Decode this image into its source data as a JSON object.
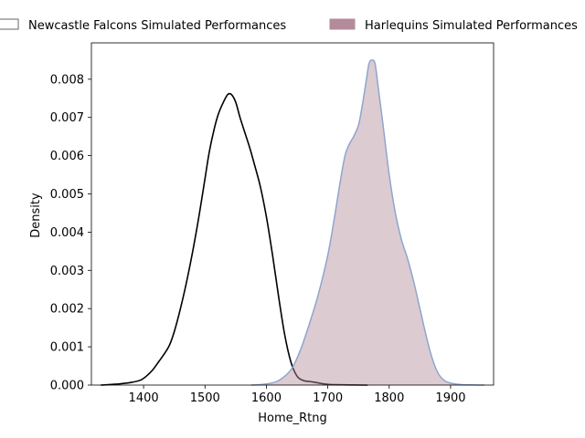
{
  "chart_data": {
    "type": "area",
    "xlabel": "Home_Rtng",
    "ylabel": "Density",
    "xlim": [
      1315,
      1970
    ],
    "ylim": [
      0,
      0.00895
    ],
    "x_ticks": [
      1300,
      1400,
      1500,
      1600,
      1700,
      1800,
      1900
    ],
    "y_ticks": [
      0.0,
      0.001,
      0.002,
      0.003,
      0.004,
      0.005,
      0.006,
      0.007,
      0.008
    ],
    "y_tick_labels": [
      "0.000",
      "0.001",
      "0.002",
      "0.003",
      "0.004",
      "0.005",
      "0.006",
      "0.007",
      "0.008"
    ],
    "grid": false,
    "legend_position": "top",
    "series": [
      {
        "name": "Newcastle Falcons Simulated Performances",
        "style": "line",
        "color": "#000000",
        "points": [
          [
            1330,
            0.0
          ],
          [
            1360,
            3e-05
          ],
          [
            1380,
            7e-05
          ],
          [
            1395,
            0.00013
          ],
          [
            1405,
            0.00024
          ],
          [
            1415,
            0.0004
          ],
          [
            1425,
            0.00062
          ],
          [
            1433,
            0.0008
          ],
          [
            1442,
            0.00104
          ],
          [
            1450,
            0.0014
          ],
          [
            1460,
            0.002
          ],
          [
            1470,
            0.0027
          ],
          [
            1480,
            0.0035
          ],
          [
            1490,
            0.0044
          ],
          [
            1500,
            0.0054
          ],
          [
            1507,
            0.0061
          ],
          [
            1515,
            0.0067
          ],
          [
            1522,
            0.0071
          ],
          [
            1530,
            0.0074
          ],
          [
            1537,
            0.0076
          ],
          [
            1543,
            0.0076
          ],
          [
            1550,
            0.0074
          ],
          [
            1557,
            0.007
          ],
          [
            1565,
            0.0066
          ],
          [
            1573,
            0.0062
          ],
          [
            1580,
            0.0058
          ],
          [
            1590,
            0.0052
          ],
          [
            1600,
            0.0044
          ],
          [
            1610,
            0.0034
          ],
          [
            1620,
            0.0023
          ],
          [
            1630,
            0.0013
          ],
          [
            1640,
            0.0006
          ],
          [
            1650,
            0.00023
          ],
          [
            1660,
            0.00012
          ],
          [
            1672,
            9e-05
          ],
          [
            1680,
            7e-05
          ],
          [
            1690,
            4e-05
          ],
          [
            1700,
            2e-05
          ],
          [
            1712,
            1e-05
          ],
          [
            1765,
            0.0
          ]
        ]
      },
      {
        "name": "Harlequins Simulated Performances",
        "style": "filled",
        "color": "#b48b9b",
        "edge_color": "#8fa5cc",
        "points": [
          [
            1575,
            0.0
          ],
          [
            1600,
            3e-05
          ],
          [
            1620,
            0.00012
          ],
          [
            1640,
            0.0004
          ],
          [
            1655,
            0.0009
          ],
          [
            1670,
            0.0016
          ],
          [
            1685,
            0.0024
          ],
          [
            1700,
            0.0034
          ],
          [
            1710,
            0.0043
          ],
          [
            1720,
            0.0053
          ],
          [
            1728,
            0.006
          ],
          [
            1735,
            0.0063
          ],
          [
            1742,
            0.0065
          ],
          [
            1750,
            0.0068
          ],
          [
            1756,
            0.0073
          ],
          [
            1762,
            0.0079
          ],
          [
            1767,
            0.0084
          ],
          [
            1772,
            0.0085
          ],
          [
            1777,
            0.0084
          ],
          [
            1782,
            0.0078
          ],
          [
            1790,
            0.0068
          ],
          [
            1800,
            0.0055
          ],
          [
            1810,
            0.0045
          ],
          [
            1820,
            0.0038
          ],
          [
            1830,
            0.0033
          ],
          [
            1840,
            0.0027
          ],
          [
            1850,
            0.002
          ],
          [
            1860,
            0.0013
          ],
          [
            1870,
            0.0007
          ],
          [
            1880,
            0.0003
          ],
          [
            1890,
            0.00012
          ],
          [
            1900,
            5e-05
          ],
          [
            1920,
            1e-05
          ],
          [
            1955,
            0.0
          ]
        ]
      }
    ]
  }
}
